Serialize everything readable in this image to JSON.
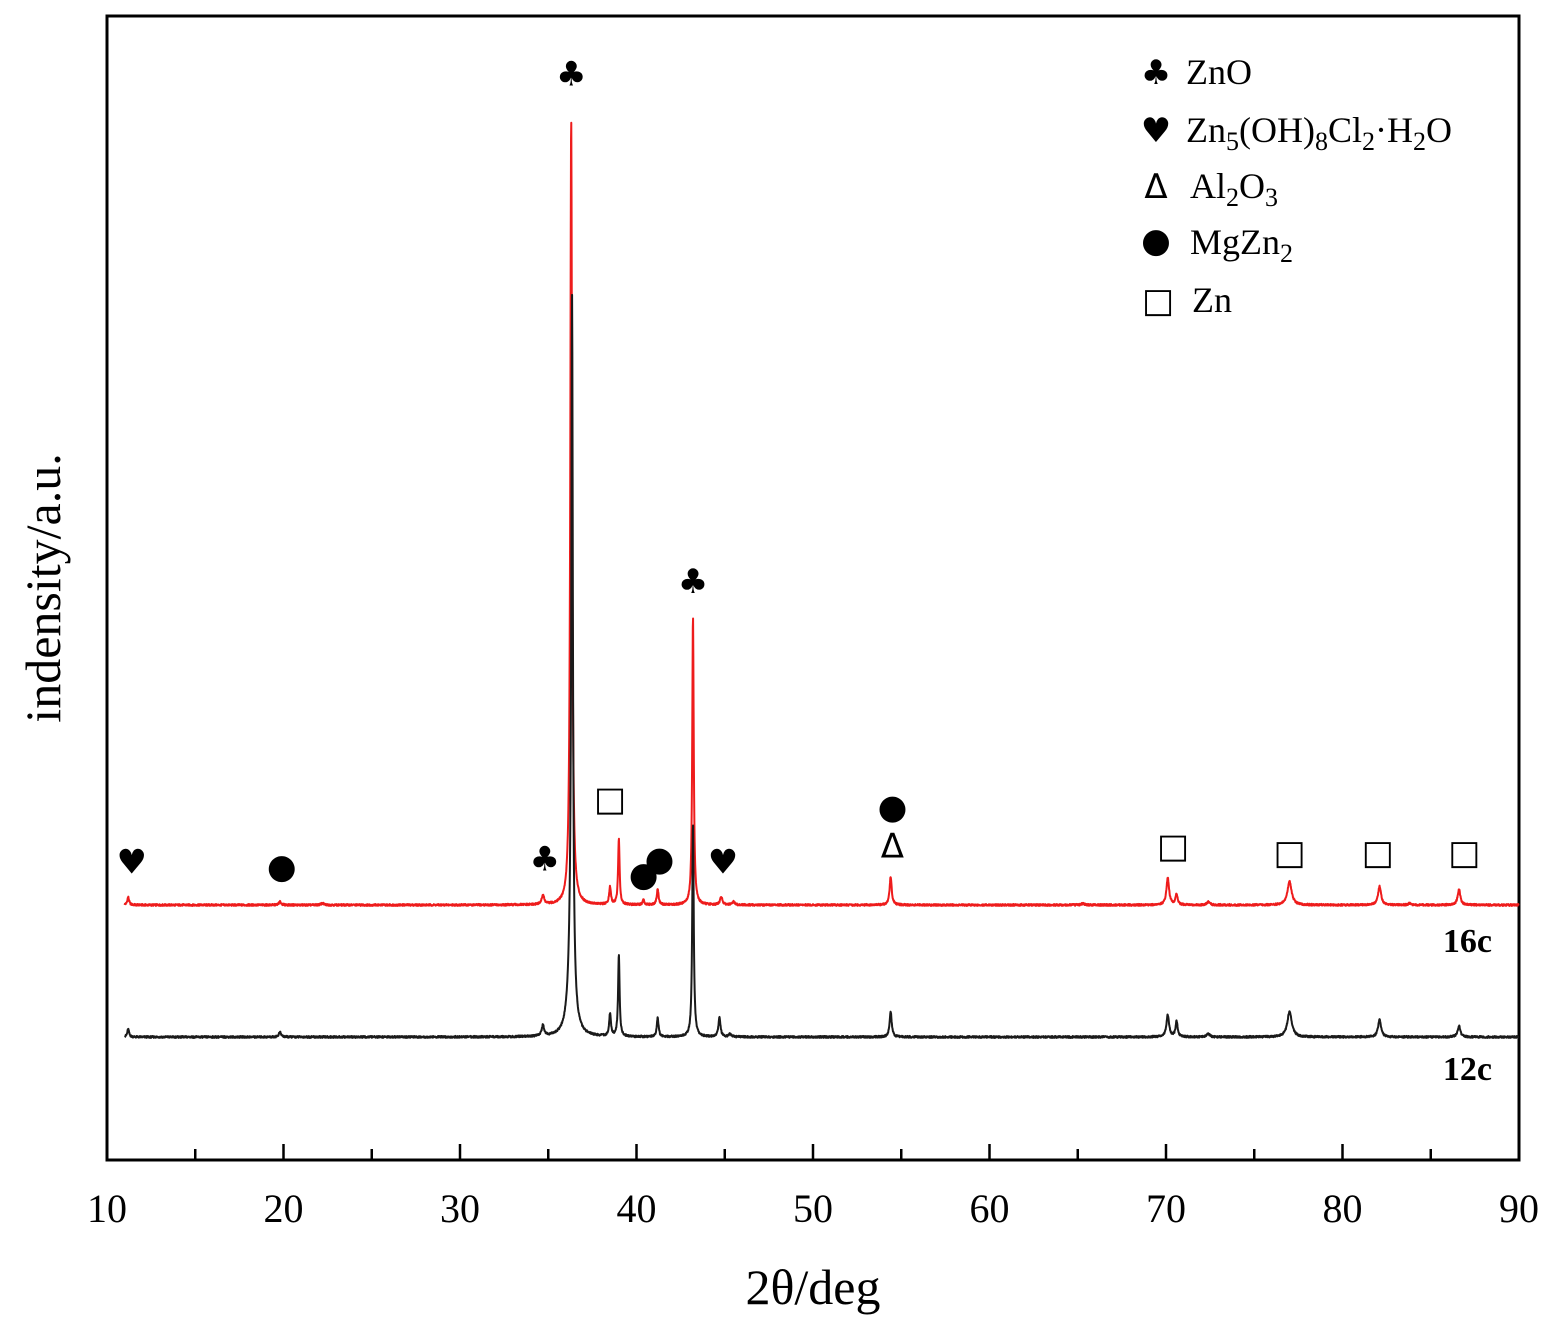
{
  "chart_data": {
    "type": "line",
    "xlabel": "2θ/deg",
    "ylabel": "indensity/a.u.",
    "xlim": [
      10,
      90
    ],
    "x_ticks": [
      "10",
      "20",
      "30",
      "40",
      "50",
      "60",
      "70",
      "80",
      "90"
    ],
    "y_ticks_labeled": false,
    "grid": false,
    "legend_placement": "top-right",
    "legend": [
      {
        "symbol": "club",
        "glyph": "♣",
        "label": "ZnO"
      },
      {
        "symbol": "heart",
        "glyph": "♥",
        "label": "Zn5(OH)8Cl2·H2O"
      },
      {
        "symbol": "triangle",
        "glyph": "Δ",
        "label": "Al2O3"
      },
      {
        "symbol": "circle",
        "glyph": "●",
        "label": "MgZn2"
      },
      {
        "symbol": "square",
        "glyph": "□",
        "label": "Zn"
      }
    ],
    "series": [
      {
        "name": "16c",
        "color": "#ee1c1c",
        "baseline": 0,
        "peaks": [
          {
            "x": 11.2,
            "h": 5,
            "w": 0.06
          },
          {
            "x": 19.8,
            "h": 2,
            "w": 0.08
          },
          {
            "x": 22.2,
            "h": 1,
            "w": 0.1
          },
          {
            "x": 34.7,
            "h": 6,
            "w": 0.08
          },
          {
            "x": 36.3,
            "h": 500,
            "w": 0.06
          },
          {
            "x": 38.5,
            "h": 11,
            "w": 0.06
          },
          {
            "x": 39.0,
            "h": 42,
            "w": 0.05
          },
          {
            "x": 40.4,
            "h": 3,
            "w": 0.06
          },
          {
            "x": 41.2,
            "h": 10,
            "w": 0.06
          },
          {
            "x": 43.2,
            "h": 183,
            "w": 0.05
          },
          {
            "x": 44.8,
            "h": 5,
            "w": 0.08
          },
          {
            "x": 45.5,
            "h": 2,
            "w": 0.08
          },
          {
            "x": 54.4,
            "h": 18,
            "w": 0.07
          },
          {
            "x": 65.3,
            "h": 1,
            "w": 0.1
          },
          {
            "x": 70.1,
            "h": 17,
            "w": 0.09
          },
          {
            "x": 70.6,
            "h": 7,
            "w": 0.07
          },
          {
            "x": 72.4,
            "h": 2,
            "w": 0.1
          },
          {
            "x": 77.0,
            "h": 15,
            "w": 0.14
          },
          {
            "x": 82.1,
            "h": 12,
            "w": 0.1
          },
          {
            "x": 83.8,
            "h": 1,
            "w": 0.1
          },
          {
            "x": 86.6,
            "h": 10,
            "w": 0.09
          }
        ]
      },
      {
        "name": "12c",
        "color": "#1a1a1a",
        "baseline": 0,
        "peaks": [
          {
            "x": 11.2,
            "h": 5,
            "w": 0.06
          },
          {
            "x": 19.8,
            "h": 3,
            "w": 0.08
          },
          {
            "x": 34.7,
            "h": 7,
            "w": 0.08
          },
          {
            "x": 36.3,
            "h": 55,
            "w": 0.18
          },
          {
            "x": 36.35,
            "h": 420,
            "w": 0.05
          },
          {
            "x": 38.5,
            "h": 14,
            "w": 0.06
          },
          {
            "x": 39.0,
            "h": 52,
            "w": 0.05
          },
          {
            "x": 41.2,
            "h": 12,
            "w": 0.06
          },
          {
            "x": 43.2,
            "h": 136,
            "w": 0.05
          },
          {
            "x": 44.7,
            "h": 12,
            "w": 0.07
          },
          {
            "x": 45.3,
            "h": 2,
            "w": 0.08
          },
          {
            "x": 54.4,
            "h": 16,
            "w": 0.07
          },
          {
            "x": 70.1,
            "h": 14,
            "w": 0.09
          },
          {
            "x": 70.6,
            "h": 10,
            "w": 0.07
          },
          {
            "x": 72.4,
            "h": 2,
            "w": 0.1
          },
          {
            "x": 77.0,
            "h": 16,
            "w": 0.15
          },
          {
            "x": 82.1,
            "h": 11,
            "w": 0.1
          },
          {
            "x": 86.6,
            "h": 7,
            "w": 0.09
          }
        ]
      }
    ],
    "annotations": [
      {
        "glyph": "♣",
        "x": 36.3,
        "h": 520
      },
      {
        "glyph": "♣",
        "x": 43.2,
        "h": 198
      },
      {
        "glyph": "♣",
        "x": 34.8,
        "h": 22
      },
      {
        "glyph": "♥",
        "x": 11.4,
        "h": 20
      },
      {
        "glyph": "♥",
        "x": 44.9,
        "h": 20
      },
      {
        "glyph": "●",
        "x": 19.9,
        "h": 17
      },
      {
        "glyph": "●",
        "x": 40.4,
        "h": 12
      },
      {
        "glyph": "●",
        "x": 41.3,
        "h": 22
      },
      {
        "glyph": "●",
        "x": 54.5,
        "h": 55
      },
      {
        "glyph": "Δ",
        "x": 54.5,
        "h": 30
      },
      {
        "glyph": "□",
        "x": 38.5,
        "h": 60
      },
      {
        "glyph": "□",
        "x": 70.4,
        "h": 30
      },
      {
        "glyph": "□",
        "x": 77.0,
        "h": 26
      },
      {
        "glyph": "□",
        "x": 82.0,
        "h": 26
      },
      {
        "glyph": "□",
        "x": 86.9,
        "h": 26
      }
    ]
  }
}
